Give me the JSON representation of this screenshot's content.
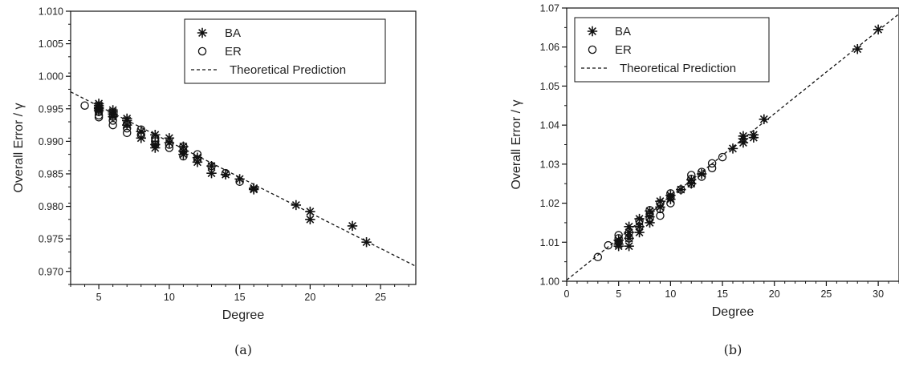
{
  "chart_data": [
    {
      "type": "scatter",
      "panel_caption": "(a)",
      "xlabel": "Degree",
      "ylabel": "Overall Error / γ",
      "xlim": [
        3,
        27.5
      ],
      "ylim": [
        0.968,
        1.01
      ],
      "xticks": [
        5,
        10,
        15,
        20,
        25
      ],
      "yticks": [
        0.97,
        0.975,
        0.98,
        0.985,
        0.99,
        0.995,
        1.0,
        1.005,
        1.01
      ],
      "ytick_labels": [
        "0.970",
        "0.975",
        "0.980",
        "0.985",
        "0.990",
        "0.995",
        "1.000",
        "1.005",
        "1.010"
      ],
      "legend": {
        "position": "top-right",
        "entries": [
          "BA",
          "ER",
          "Theoretical Prediction"
        ]
      },
      "series": [
        {
          "name": "BA",
          "marker": "asterisk",
          "points": [
            [
              5,
              0.9958
            ],
            [
              5,
              0.9955
            ],
            [
              5,
              0.9952
            ],
            [
              5,
              0.995
            ],
            [
              5,
              0.9947
            ],
            [
              6,
              0.9948
            ],
            [
              6,
              0.9945
            ],
            [
              6,
              0.9942
            ],
            [
              6,
              0.9938
            ],
            [
              7,
              0.9935
            ],
            [
              7,
              0.9932
            ],
            [
              7,
              0.9925
            ],
            [
              8,
              0.9915
            ],
            [
              8,
              0.9905
            ],
            [
              9,
              0.991
            ],
            [
              9,
              0.9895
            ],
            [
              9,
              0.989
            ],
            [
              10,
              0.9905
            ],
            [
              10,
              0.9898
            ],
            [
              11,
              0.9892
            ],
            [
              11,
              0.9885
            ],
            [
              11,
              0.988
            ],
            [
              12,
              0.9875
            ],
            [
              12,
              0.9868
            ],
            [
              13,
              0.9862
            ],
            [
              13,
              0.9851
            ],
            [
              14,
              0.9849
            ],
            [
              15,
              0.9842
            ],
            [
              16,
              0.9828
            ],
            [
              16,
              0.9826
            ],
            [
              19,
              0.9802
            ],
            [
              20,
              0.9792
            ],
            [
              20,
              0.978
            ],
            [
              23,
              0.977
            ],
            [
              24,
              0.9745
            ]
          ]
        },
        {
          "name": "ER",
          "marker": "circle",
          "points": [
            [
              4,
              0.9955
            ],
            [
              5,
              0.995
            ],
            [
              5,
              0.9945
            ],
            [
              5,
              0.994
            ],
            [
              5,
              0.9937
            ],
            [
              6,
              0.9938
            ],
            [
              6,
              0.9932
            ],
            [
              6,
              0.9925
            ],
            [
              7,
              0.9927
            ],
            [
              7,
              0.992
            ],
            [
              7,
              0.9913
            ],
            [
              8,
              0.9918
            ],
            [
              8,
              0.991
            ],
            [
              9,
              0.9905
            ],
            [
              9,
              0.99
            ],
            [
              9,
              0.9895
            ],
            [
              10,
              0.9895
            ],
            [
              10,
              0.989
            ],
            [
              11,
              0.9892
            ],
            [
              11,
              0.9885
            ],
            [
              11,
              0.9877
            ],
            [
              12,
              0.988
            ],
            [
              12,
              0.9872
            ],
            [
              13,
              0.9862
            ],
            [
              14,
              0.9851
            ],
            [
              15,
              0.9838
            ]
          ]
        },
        {
          "name": "Theoretical Prediction",
          "style": "dashed-line",
          "line": {
            "x": [
              3,
              27.5
            ],
            "y": [
              0.9976,
              0.9708
            ]
          }
        }
      ]
    },
    {
      "type": "scatter",
      "panel_caption": "(b)",
      "xlabel": "Degree",
      "ylabel": "Overall Error / γ",
      "xlim": [
        0,
        32
      ],
      "ylim": [
        1.0,
        1.07
      ],
      "xticks": [
        0,
        5,
        10,
        15,
        20,
        25,
        30
      ],
      "yticks": [
        1.0,
        1.01,
        1.02,
        1.03,
        1.04,
        1.05,
        1.06,
        1.07
      ],
      "ytick_labels": [
        "1.00",
        "1.01",
        "1.02",
        "1.03",
        "1.04",
        "1.05",
        "1.06",
        "1.07"
      ],
      "legend": {
        "position": "top-left",
        "entries": [
          "BA",
          "ER",
          "Theoretical Prediction"
        ]
      },
      "series": [
        {
          "name": "BA",
          "marker": "asterisk",
          "points": [
            [
              5,
              1.009
            ],
            [
              5,
              1.0095
            ],
            [
              5,
              1.0105
            ],
            [
              6,
              1.009
            ],
            [
              6,
              1.011
            ],
            [
              6,
              1.0125
            ],
            [
              6,
              1.014
            ],
            [
              7,
              1.0125
            ],
            [
              7,
              1.014
            ],
            [
              7,
              1.016
            ],
            [
              8,
              1.015
            ],
            [
              8,
              1.0165
            ],
            [
              8,
              1.018
            ],
            [
              9,
              1.019
            ],
            [
              9,
              1.0205
            ],
            [
              10,
              1.021
            ],
            [
              10,
              1.022
            ],
            [
              11,
              1.0235
            ],
            [
              12,
              1.025
            ],
            [
              12,
              1.026
            ],
            [
              13,
              1.0275
            ],
            [
              16,
              1.034
            ],
            [
              17,
              1.0355
            ],
            [
              17,
              1.0365
            ],
            [
              17,
              1.0372
            ],
            [
              18,
              1.0368
            ],
            [
              18,
              1.0375
            ],
            [
              19,
              1.0415
            ],
            [
              28,
              1.0595
            ],
            [
              30,
              1.0645
            ]
          ]
        },
        {
          "name": "ER",
          "marker": "circle",
          "points": [
            [
              3,
              1.0062
            ],
            [
              4,
              1.0092
            ],
            [
              5,
              1.01
            ],
            [
              5,
              1.011
            ],
            [
              5,
              1.0118
            ],
            [
              6,
              1.011
            ],
            [
              6,
              1.0125
            ],
            [
              7,
              1.014
            ],
            [
              7,
              1.0155
            ],
            [
              8,
              1.016
            ],
            [
              8,
              1.0172
            ],
            [
              8,
              1.0182
            ],
            [
              9,
              1.0168
            ],
            [
              9,
              1.0185
            ],
            [
              9,
              1.02
            ],
            [
              10,
              1.02
            ],
            [
              10,
              1.0215
            ],
            [
              10,
              1.0225
            ],
            [
              11,
              1.0235
            ],
            [
              12,
              1.025
            ],
            [
              12,
              1.0262
            ],
            [
              12,
              1.0272
            ],
            [
              13,
              1.0268
            ],
            [
              13,
              1.028
            ],
            [
              14,
              1.029
            ],
            [
              14,
              1.0302
            ],
            [
              15,
              1.0318
            ]
          ]
        },
        {
          "name": "Theoretical Prediction",
          "style": "dashed-line",
          "line": {
            "x": [
              0,
              32
            ],
            "y": [
              1.0003,
              1.0685
            ]
          }
        }
      ]
    }
  ]
}
